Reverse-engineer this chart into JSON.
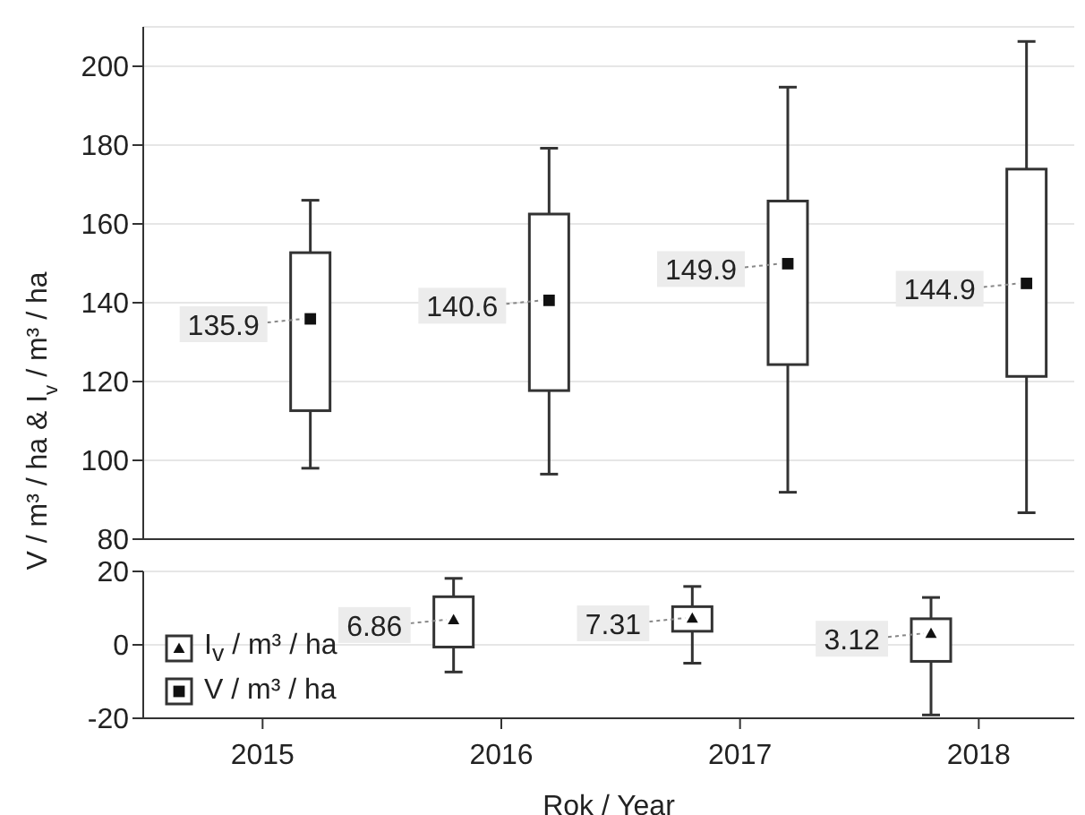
{
  "chart_data": [
    {
      "type": "box",
      "ylabel": "V / m³ / ha  & I$_{v}$ / m³ / ha",
      "xlim": [
        2014.5,
        2018.4
      ],
      "xticks": [
        2015,
        2016,
        2017,
        2018
      ],
      "ylim": [
        80,
        210
      ],
      "yticks": [
        80,
        100,
        120,
        140,
        160,
        180,
        200
      ],
      "grid": "y",
      "tick_labels": "y",
      "legend": "bottom left",
      "series": [
        {
          "name": "V / m³ / ha",
          "color": "#333333",
          "marker": "square",
          "x": [
            2015.2,
            2016.2,
            2017.2,
            2018.2
          ],
          "value_labels": [
            "135.9",
            "140.6",
            "149.9",
            "144.9"
          ],
          "boxes": [
            {
              "low": 98,
              "q1": 112.6,
              "median": 135.9,
              "q3": 152.7,
              "high": 166
            },
            {
              "low": 96.5,
              "q1": 117.7,
              "median": 140.6,
              "q3": 162.5,
              "high": 179.2
            },
            {
              "low": 91.9,
              "q1": 124.3,
              "median": 149.9,
              "q3": 165.8,
              "high": 194.7
            },
            {
              "low": 86.7,
              "q1": 121.3,
              "median": 144.9,
              "q3": 173.9,
              "high": 206.3
            }
          ]
        }
      ]
    },
    {
      "type": "box",
      "xlabel": "Rok / Year",
      "xlim": [
        2014.5,
        2018.4
      ],
      "xticks": [
        2015,
        2016,
        2017,
        2018
      ],
      "ylim": [
        -20,
        20
      ],
      "yticks": [
        -20,
        0,
        20
      ],
      "grid": "y",
      "legend": "bottom left",
      "series": [
        {
          "name": "I$_{v}$ / m³ / ha",
          "color": "#333333",
          "marker": "triangle",
          "x": [
            2015.8,
            2016.8,
            2017.8
          ],
          "value_labels": [
            "6.86",
            "7.31",
            "3.12"
          ],
          "boxes": [
            {
              "low": -7.4,
              "q1": -0.6,
              "median": 6.86,
              "q3": 13.1,
              "high": 18.1
            },
            {
              "low": -5,
              "q1": 3.7,
              "median": 7.31,
              "q3": 10.4,
              "high": 15.9
            },
            {
              "low": -19.1,
              "q1": -4.5,
              "median": 3.12,
              "q3": 7.1,
              "high": 12.9
            }
          ]
        }
      ]
    }
  ]
}
